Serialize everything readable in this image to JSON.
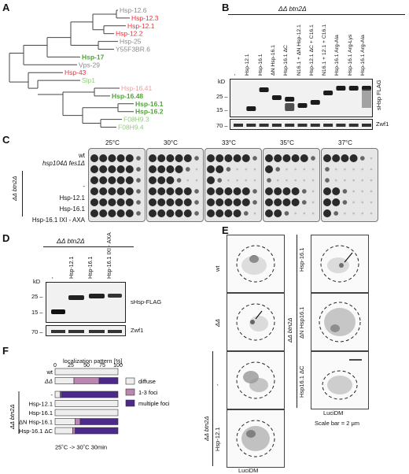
{
  "panels": {
    "A": "A",
    "B": "B",
    "C": "C",
    "D": "D",
    "E": "E",
    "F": "F"
  },
  "colors": {
    "red": "#e8333a",
    "green": "#4aa832",
    "gray": "#8a8a8a",
    "pink": "#f29a9a",
    "lightgreen": "#8fd07a",
    "purple": "#4b2a8a",
    "mauve": "#b888b0",
    "diffuse": "#eeeeee"
  },
  "tree": {
    "leaves": [
      {
        "label": "Hsp-12.6",
        "color": "gray"
      },
      {
        "label": "Hsp-12.3",
        "color": "red"
      },
      {
        "label": "Hsp-12.1",
        "color": "red"
      },
      {
        "label": "Hsp-12.2",
        "color": "red"
      },
      {
        "label": "Hsp-25",
        "color": "gray"
      },
      {
        "label": "Y55F3BR.6",
        "color": "gray"
      },
      {
        "label": "Hsp-17",
        "color": "green",
        "bold": true
      },
      {
        "label": "Vps-29",
        "color": "gray"
      },
      {
        "label": "Hsp-43",
        "color": "red"
      },
      {
        "label": "Sip1",
        "color": "lightgreen"
      },
      {
        "label": "Hsp-16.41",
        "color": "pink"
      },
      {
        "label": "Hsp-16.48",
        "color": "green",
        "bold": true
      },
      {
        "label": "Hsp-16.1",
        "color": "green",
        "bold": true
      },
      {
        "label": "Hsp-16.2",
        "color": "green",
        "bold": true
      },
      {
        "label": "F08H9.3",
        "color": "lightgreen"
      },
      {
        "label": "F08H9.4",
        "color": "lightgreen"
      }
    ]
  },
  "panelB": {
    "title": "ΔΔ btn2Δ",
    "lanes": [
      "-",
      "Hsp-12.1",
      "Hsp-16.1",
      "ΔN Hsp-16.1",
      "Hsp-16.1 ΔC",
      "N16.1 + ΔN Hsp-12.1",
      "Hsp-12.1 ΔC + C16.1",
      "N16.1 + 12.1 + C16.1",
      "Hsp-16.1 Arg-Ala",
      "Hsp-16.1 Arg-Lys",
      "Hsp-16.1 Arg-Ala"
    ],
    "kd_label": "kD",
    "markers": [
      "25 –",
      "15 –",
      "70 –"
    ],
    "blot1_label": "sHsp FLAG",
    "blot2_label": "Zwf1"
  },
  "panelC": {
    "temps": [
      "25°C",
      "30°C",
      "33°C",
      "35°C",
      "37°C"
    ],
    "rows": [
      "wt",
      "hsp104Δ fes1Δ",
      "-",
      "Hsp-12.1",
      "Hsp-16.1",
      "Hsp-16.1 IXI - AXA"
    ],
    "group_label": "ΔΔ btn2Δ"
  },
  "panelD": {
    "title": "ΔΔ btn2Δ",
    "lanes": [
      "-",
      "Hsp-12.1",
      "Hsp-16.1",
      "Hsp-16.1 IXI - AXA"
    ],
    "kd_label": "kD",
    "markers": [
      "25 –",
      "15 –",
      "70 –"
    ],
    "blot1_label": "sHsp-FLAG",
    "blot2_label": "Zwf1"
  },
  "panelE": {
    "left_top": [
      "wt",
      "ΔΔ"
    ],
    "left_group": "ΔΔ btn2Δ",
    "left_bottom": [
      "-",
      "Hsp-12.1"
    ],
    "right_group": "ΔΔ btn2Δ",
    "right": [
      "Hsp-16.1",
      "ΔN Hsp16.1",
      "Hsp16.1 ΔC"
    ],
    "xlabel": "LuciDM",
    "scale": "Scale bar = 2 μm"
  },
  "panelF": {
    "title": "localization pattern [%]",
    "ticks": [
      "0",
      "25",
      "50",
      "75",
      "100"
    ],
    "group_label": "ΔΔ btn2Δ",
    "legend": [
      "diffuse",
      "1-3 foci",
      "multiple foci"
    ],
    "footer": "25˚C -> 30˚C   30min",
    "chart_data": {
      "type": "bar",
      "stacked": true,
      "orientation": "horizontal",
      "title": "localization pattern [%]",
      "xlim": [
        0,
        100
      ],
      "categories": [
        "wt",
        "ΔΔ",
        "-",
        "Hsp-12.1",
        "Hsp-16.1",
        "ΔN Hsp-16.1",
        "Hsp-16.1 ΔC"
      ],
      "series": [
        {
          "name": "diffuse",
          "values": [
            100,
            30,
            8,
            100,
            100,
            32,
            28
          ]
        },
        {
          "name": "1-3 foci",
          "values": [
            0,
            40,
            2,
            0,
            0,
            8,
            4
          ]
        },
        {
          "name": "multiple foci",
          "values": [
            0,
            30,
            90,
            0,
            0,
            60,
            68
          ]
        }
      ]
    }
  }
}
